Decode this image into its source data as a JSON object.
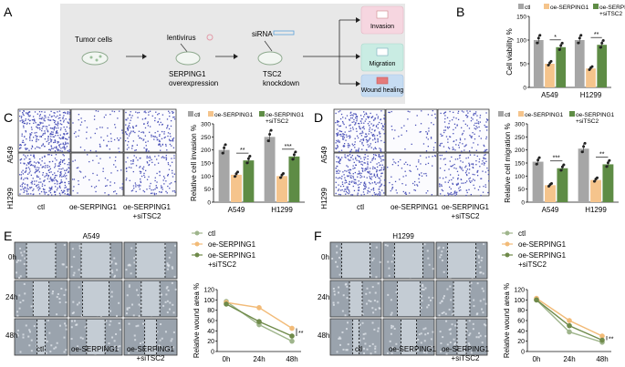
{
  "panels": {
    "A": "A",
    "B": "B",
    "C": "C",
    "D": "D",
    "E": "E",
    "F": "F"
  },
  "schematic": {
    "tumor_cells": "Tumor cells",
    "lentivirus": "lentivirus",
    "serping1_line1": "SERPING1",
    "serping1_line2": "overexpression",
    "sirna": "siRNA",
    "tsc2_line1": "TSC2",
    "tsc2_line2": "knockdown",
    "outcomes": [
      "Invasion",
      "Migration",
      "Wound healing"
    ],
    "box_bg": "#e8e8e8",
    "outcome_colors": [
      "#f6d6e0",
      "#c9ece3",
      "#c6dcf2"
    ]
  },
  "legend": {
    "ctl": "ctl",
    "oe": "oe-SERPING1",
    "oe_si_line1": "oe-SERPING1",
    "oe_si_line2": "+siTSC2"
  },
  "colors": {
    "ctl": "#a6a6a6",
    "oe": "#f5c48c",
    "oe_si": "#5e8c45",
    "line_ctl": "#9fb58c",
    "line_oe": "#f2bb78",
    "line_si": "#6f8a4a"
  },
  "microscopy": {
    "row_labels": [
      "A549",
      "H1299"
    ],
    "col_labels": [
      "ctl",
      "oe-SERPING1",
      "oe-SERPING1"
    ],
    "col_label_sub": "+siTSC2",
    "wound_rows": [
      "0h",
      "24h",
      "48h"
    ],
    "e_title": "A549",
    "f_title": "H1299"
  },
  "chart_data": [
    {
      "id": "B",
      "type": "bar",
      "ylabel": "Cell viability %",
      "categories": [
        "A549",
        "H1299"
      ],
      "ylim": [
        0,
        150
      ],
      "yticks": [
        0,
        50,
        100,
        150
      ],
      "series": [
        {
          "name": "ctl",
          "values": [
            100,
            100
          ]
        },
        {
          "name": "oe-SERPING1",
          "values": [
            50,
            40
          ]
        },
        {
          "name": "oe-SERPING1+siTSC2",
          "values": [
            85,
            90
          ]
        }
      ],
      "significance": [
        "*",
        "**"
      ]
    },
    {
      "id": "C",
      "type": "bar",
      "ylabel": "Relative cell invasion %",
      "categories": [
        "A549",
        "H1299"
      ],
      "ylim": [
        0,
        300
      ],
      "yticks": [
        0,
        50,
        100,
        150,
        200,
        250,
        300
      ],
      "series": [
        {
          "name": "ctl",
          "values": [
            200,
            250
          ]
        },
        {
          "name": "oe-SERPING1",
          "values": [
            105,
            100
          ]
        },
        {
          "name": "oe-SERPING1+siTSC2",
          "values": [
            160,
            175
          ]
        }
      ],
      "significance": [
        "**",
        "***"
      ]
    },
    {
      "id": "D",
      "type": "bar",
      "ylabel": "Relative cell migration %",
      "categories": [
        "A549",
        "H1299"
      ],
      "ylim": [
        0,
        300
      ],
      "yticks": [
        0,
        50,
        100,
        150,
        200,
        250,
        300
      ],
      "series": [
        {
          "name": "ctl",
          "values": [
            155,
            205
          ]
        },
        {
          "name": "oe-SERPING1",
          "values": [
            65,
            85
          ]
        },
        {
          "name": "oe-SERPING1+siTSC2",
          "values": [
            130,
            145
          ]
        }
      ],
      "significance": [
        "***",
        "**"
      ]
    },
    {
      "id": "E",
      "type": "line",
      "ylabel": "Relative wound area %",
      "x": [
        "0h",
        "24h",
        "48h"
      ],
      "ylim": [
        0,
        120
      ],
      "yticks": [
        0,
        20,
        40,
        60,
        80,
        100,
        120
      ],
      "series": [
        {
          "name": "ctl",
          "values": [
            97,
            52,
            20
          ]
        },
        {
          "name": "oe-SERPING1",
          "values": [
            95,
            85,
            45
          ]
        },
        {
          "name": "oe-SERPING1+siTSC2",
          "values": [
            92,
            58,
            30
          ]
        }
      ],
      "significance": "**"
    },
    {
      "id": "F",
      "type": "line",
      "ylabel": "Relative wound area %",
      "x": [
        "0h",
        "24h",
        "48h"
      ],
      "ylim": [
        0,
        120
      ],
      "yticks": [
        0,
        20,
        40,
        60,
        80,
        100,
        120
      ],
      "series": [
        {
          "name": "ctl",
          "values": [
            100,
            38,
            18
          ]
        },
        {
          "name": "oe-SERPING1",
          "values": [
            103,
            60,
            30
          ]
        },
        {
          "name": "oe-SERPING1+siTSC2",
          "values": [
            100,
            50,
            22
          ]
        }
      ],
      "significance": "**"
    }
  ]
}
